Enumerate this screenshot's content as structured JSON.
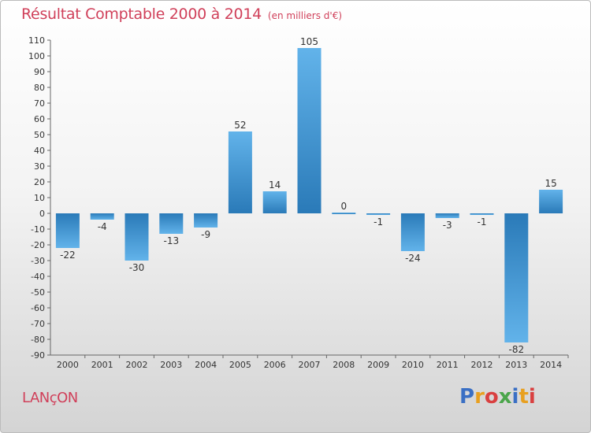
{
  "header": {
    "title": "Résultat Comptable 2000 à 2014",
    "subtitle": "(en milliers d'€)"
  },
  "footer": {
    "city": "LANçON",
    "logo": "Proxiti",
    "logo_colors": [
      "#3a6fc4",
      "#e8a020",
      "#d94040",
      "#4aa54a",
      "#3a6fc4",
      "#e8a020",
      "#d94040"
    ]
  },
  "colors": {
    "bar_top": "#62b3ea",
    "bar_bottom": "#2a7ab8",
    "title": "#d0405a",
    "axis": "#666666"
  },
  "chart_data": {
    "type": "bar",
    "categories": [
      "2000",
      "2001",
      "2002",
      "2003",
      "2004",
      "2005",
      "2006",
      "2007",
      "2008",
      "2009",
      "2010",
      "2011",
      "2012",
      "2013",
      "2014"
    ],
    "values": [
      -22,
      -4,
      -30,
      -13,
      -9,
      52,
      14,
      105,
      0,
      -1,
      -24,
      -3,
      -1,
      -82,
      15
    ],
    "ylim": [
      -90,
      110
    ],
    "yticks": [
      110,
      100,
      90,
      80,
      70,
      60,
      50,
      40,
      30,
      20,
      10,
      0,
      -10,
      -20,
      -30,
      -40,
      -50,
      -60,
      -70,
      -80,
      -90
    ],
    "grid": false,
    "data_labels": true
  }
}
